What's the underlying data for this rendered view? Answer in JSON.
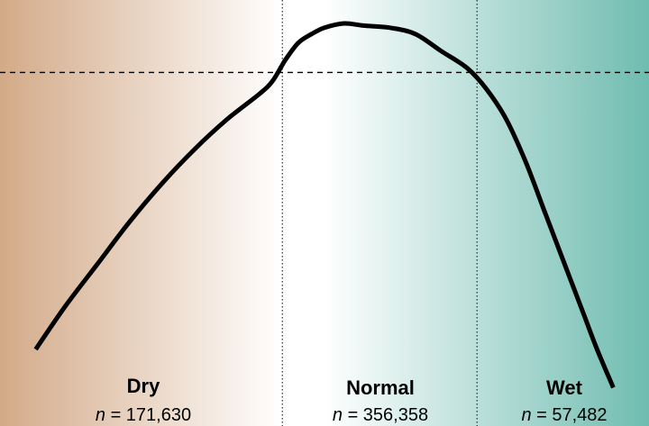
{
  "chart_data": {
    "type": "line",
    "title": "",
    "xlabel": "",
    "ylabel": "",
    "xlim": [
      0,
      1
    ],
    "ylim": [
      0,
      1
    ],
    "grid": false,
    "colors": {
      "dry": "#d3aa88",
      "normal": "#ffffff",
      "wet": "#6fbcb0",
      "curve": "#000000"
    },
    "reference_line_y": 0.83,
    "zone_boundaries_x": [
      0.435,
      0.735
    ],
    "zones": [
      {
        "name": "Dry",
        "n_symbol": "n",
        "n_text": " = 171,630"
      },
      {
        "name": "Normal",
        "n_symbol": "n",
        "n_text": " = 356,358"
      },
      {
        "name": "Wet",
        "n_symbol": "n",
        "n_text": " = 57,482"
      }
    ],
    "series": [
      {
        "x": [
          0.055,
          0.1,
          0.15,
          0.2,
          0.25,
          0.3,
          0.35,
          0.4,
          0.42,
          0.44,
          0.46,
          0.48,
          0.5,
          0.53,
          0.56,
          0.6,
          0.64,
          0.68,
          0.72,
          0.75,
          0.78,
          0.81,
          0.84,
          0.87,
          0.9,
          0.92,
          0.945
        ],
        "y": [
          0.18,
          0.28,
          0.38,
          0.48,
          0.57,
          0.65,
          0.72,
          0.78,
          0.81,
          0.86,
          0.9,
          0.92,
          0.935,
          0.945,
          0.94,
          0.935,
          0.92,
          0.88,
          0.84,
          0.79,
          0.72,
          0.62,
          0.5,
          0.38,
          0.26,
          0.18,
          0.09
        ]
      }
    ]
  }
}
